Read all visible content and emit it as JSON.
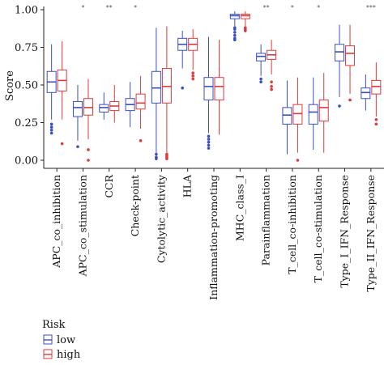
{
  "chart_data": {
    "type": "boxplot",
    "ylabel": "Score",
    "ylim": [
      0,
      1.0
    ],
    "yticks": [
      "0.00",
      "0.25",
      "0.50",
      "0.75",
      "1.00"
    ],
    "categories": [
      "APC_co_inhibition",
      "APC_co_stimulation",
      "CCR",
      "Check-point",
      "Cytolytic_activity",
      "HLA",
      "Inflammation-promoting",
      "MHC_class_I",
      "Parainflammation",
      "T_cell_co-inhibition",
      "T_cell_co-stimulation",
      "Type_I_IFN_Response",
      "Type_II_IFN_Response"
    ],
    "significance": [
      "",
      "*",
      "**",
      "*",
      "",
      "",
      "",
      "",
      "**",
      "*",
      "*",
      "",
      "***"
    ],
    "legend": {
      "title": "Risk",
      "placement": "bottom-left",
      "entries": [
        "low",
        "high"
      ]
    },
    "colors": {
      "low": "#3a4fc4",
      "high": "#e0383c"
    },
    "series": [
      {
        "name": "low",
        "boxes": [
          {
            "min": 0.27,
            "q1": 0.45,
            "median": 0.52,
            "q3": 0.59,
            "max": 0.77,
            "outliers": [
              0.24,
              0.22,
              0.2,
              0.18
            ]
          },
          {
            "min": 0.13,
            "q1": 0.29,
            "median": 0.35,
            "q3": 0.39,
            "max": 0.5,
            "outliers": [
              0.09
            ]
          },
          {
            "min": 0.27,
            "q1": 0.32,
            "median": 0.35,
            "q3": 0.37,
            "max": 0.45,
            "outliers": []
          },
          {
            "min": 0.22,
            "q1": 0.33,
            "median": 0.37,
            "q3": 0.41,
            "max": 0.52,
            "outliers": []
          },
          {
            "min": 0.05,
            "q1": 0.38,
            "median": 0.48,
            "q3": 0.59,
            "max": 0.88,
            "outliers": [
              0.04,
              0.02,
              0.01
            ]
          },
          {
            "min": 0.61,
            "q1": 0.73,
            "median": 0.77,
            "q3": 0.81,
            "max": 0.86,
            "outliers": [
              0.48
            ]
          },
          {
            "min": 0.18,
            "q1": 0.4,
            "median": 0.49,
            "q3": 0.55,
            "max": 0.82,
            "outliers": [
              0.16,
              0.14,
              0.12,
              0.1,
              0.08
            ]
          },
          {
            "min": 0.89,
            "q1": 0.94,
            "median": 0.96,
            "q3": 0.97,
            "max": 0.99,
            "outliers": [
              0.88,
              0.87,
              0.85,
              0.83,
              0.81,
              0.8
            ]
          },
          {
            "min": 0.56,
            "q1": 0.66,
            "median": 0.69,
            "q3": 0.71,
            "max": 0.77,
            "outliers": [
              0.54,
              0.52
            ]
          },
          {
            "min": 0.04,
            "q1": 0.24,
            "median": 0.3,
            "q3": 0.35,
            "max": 0.53,
            "outliers": []
          },
          {
            "min": 0.07,
            "q1": 0.24,
            "median": 0.32,
            "q3": 0.37,
            "max": 0.55,
            "outliers": []
          },
          {
            "min": 0.42,
            "q1": 0.66,
            "median": 0.72,
            "q3": 0.77,
            "max": 0.9,
            "outliers": [
              0.36
            ]
          },
          {
            "min": 0.33,
            "q1": 0.41,
            "median": 0.45,
            "q3": 0.48,
            "max": 0.57,
            "outliers": []
          }
        ]
      },
      {
        "name": "high",
        "boxes": [
          {
            "min": 0.27,
            "q1": 0.46,
            "median": 0.53,
            "q3": 0.6,
            "max": 0.79,
            "outliers": [
              0.11
            ]
          },
          {
            "min": 0.14,
            "q1": 0.3,
            "median": 0.35,
            "q3": 0.41,
            "max": 0.54,
            "outliers": [
              0.07,
              0.0
            ]
          },
          {
            "min": 0.25,
            "q1": 0.33,
            "median": 0.36,
            "q3": 0.39,
            "max": 0.5,
            "outliers": []
          },
          {
            "min": 0.21,
            "q1": 0.34,
            "median": 0.38,
            "q3": 0.44,
            "max": 0.56,
            "outliers": [
              0.13
            ]
          },
          {
            "min": 0.05,
            "q1": 0.38,
            "median": 0.49,
            "q3": 0.61,
            "max": 0.89,
            "outliers": [
              0.04,
              0.03,
              0.02,
              0.01
            ]
          },
          {
            "min": 0.6,
            "q1": 0.73,
            "median": 0.77,
            "q3": 0.81,
            "max": 0.87,
            "outliers": [
              0.58,
              0.56,
              0.54
            ]
          },
          {
            "min": 0.17,
            "q1": 0.4,
            "median": 0.49,
            "q3": 0.55,
            "max": 0.8,
            "outliers": []
          },
          {
            "min": 0.89,
            "q1": 0.94,
            "median": 0.96,
            "q3": 0.97,
            "max": 0.99,
            "outliers": [
              0.88,
              0.87,
              0.86
            ]
          },
          {
            "min": 0.57,
            "q1": 0.67,
            "median": 0.7,
            "q3": 0.73,
            "max": 0.8,
            "outliers": [
              0.52,
              0.49,
              0.47
            ]
          },
          {
            "min": 0.05,
            "q1": 0.24,
            "median": 0.31,
            "q3": 0.37,
            "max": 0.55,
            "outliers": [
              0.0
            ]
          },
          {
            "min": 0.05,
            "q1": 0.26,
            "median": 0.35,
            "q3": 0.4,
            "max": 0.58,
            "outliers": []
          },
          {
            "min": 0.44,
            "q1": 0.63,
            "median": 0.71,
            "q3": 0.76,
            "max": 0.9,
            "outliers": [
              0.4
            ]
          },
          {
            "min": 0.29,
            "q1": 0.44,
            "median": 0.49,
            "q3": 0.53,
            "max": 0.65,
            "outliers": [
              0.27,
              0.24
            ]
          }
        ]
      }
    ]
  }
}
